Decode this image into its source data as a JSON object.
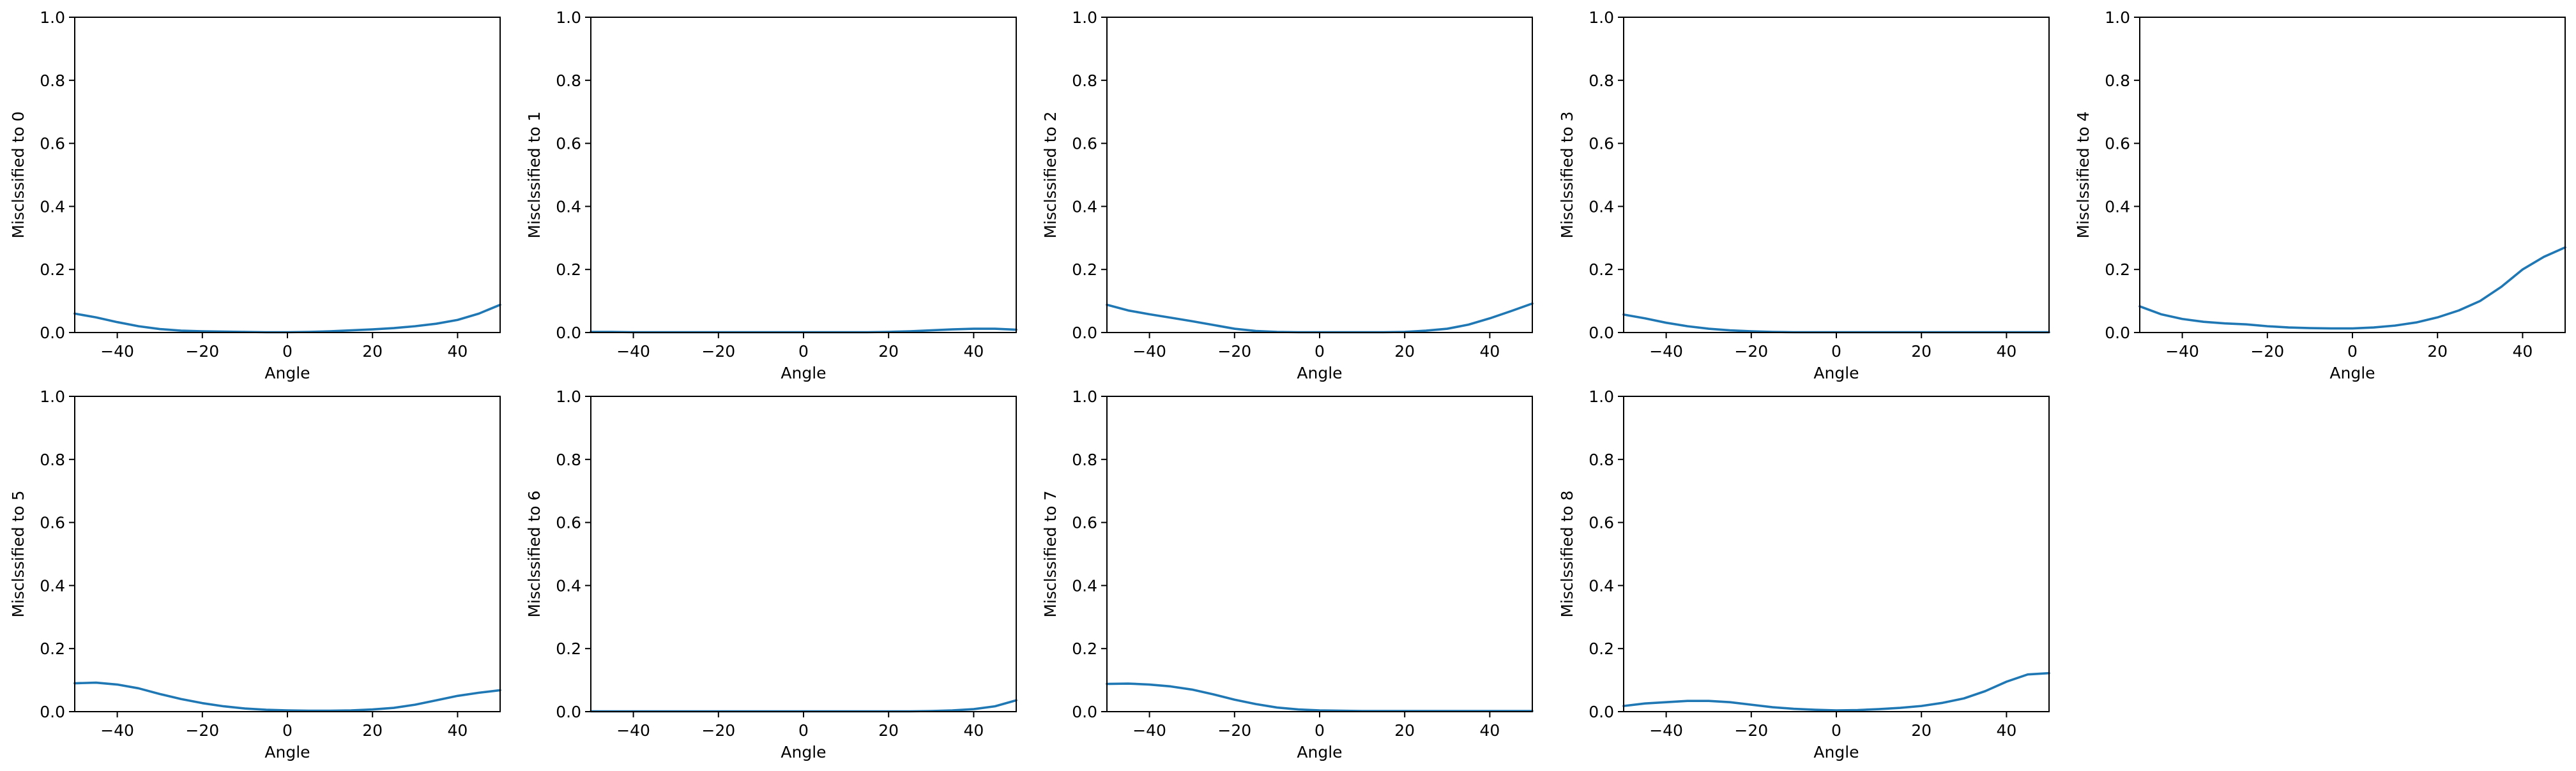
{
  "chart_data": [
    {
      "type": "line",
      "xlabel": "Angle",
      "ylabel": "Misclssified to 0",
      "xlim": [
        -50,
        50
      ],
      "ylim": [
        0,
        1
      ],
      "xticks": [
        -40,
        -20,
        0,
        20,
        40
      ],
      "yticks": [
        0.0,
        0.2,
        0.4,
        0.6,
        0.8,
        1.0
      ],
      "grid": false,
      "series": [
        {
          "color": "#1f77b4",
          "x": [
            -50,
            -45,
            -40,
            -35,
            -30,
            -25,
            -20,
            -15,
            -10,
            -5,
            0,
            5,
            10,
            15,
            20,
            25,
            30,
            35,
            40,
            45,
            50
          ],
          "y": [
            0.06,
            0.048,
            0.033,
            0.02,
            0.011,
            0.006,
            0.004,
            0.003,
            0.002,
            0.001,
            0.001,
            0.002,
            0.004,
            0.007,
            0.01,
            0.014,
            0.02,
            0.028,
            0.04,
            0.06,
            0.088
          ]
        }
      ]
    },
    {
      "type": "line",
      "xlabel": "Angle",
      "ylabel": "Misclssified to 1",
      "xlim": [
        -50,
        50
      ],
      "ylim": [
        0,
        1
      ],
      "xticks": [
        -40,
        -20,
        0,
        20,
        40
      ],
      "yticks": [
        0.0,
        0.2,
        0.4,
        0.6,
        0.8,
        1.0
      ],
      "grid": false,
      "series": [
        {
          "color": "#1f77b4",
          "x": [
            -50,
            -45,
            -40,
            -35,
            -30,
            -25,
            -20,
            -15,
            -10,
            -5,
            0,
            5,
            10,
            15,
            20,
            25,
            30,
            35,
            40,
            45,
            50
          ],
          "y": [
            0.002,
            0.002,
            0.001,
            0.001,
            0.001,
            0.001,
            0.001,
            0.001,
            0.001,
            0.001,
            0.001,
            0.001,
            0.001,
            0.001,
            0.002,
            0.004,
            0.007,
            0.01,
            0.012,
            0.012,
            0.009
          ]
        }
      ]
    },
    {
      "type": "line",
      "xlabel": "Angle",
      "ylabel": "Misclssified to 2",
      "xlim": [
        -50,
        50
      ],
      "ylim": [
        0,
        1
      ],
      "xticks": [
        -40,
        -20,
        0,
        20,
        40
      ],
      "yticks": [
        0.0,
        0.2,
        0.4,
        0.6,
        0.8,
        1.0
      ],
      "grid": false,
      "series": [
        {
          "color": "#1f77b4",
          "x": [
            -50,
            -45,
            -40,
            -35,
            -30,
            -25,
            -20,
            -15,
            -10,
            -5,
            0,
            5,
            10,
            15,
            20,
            25,
            30,
            35,
            40,
            45,
            50
          ],
          "y": [
            0.088,
            0.07,
            0.058,
            0.047,
            0.036,
            0.024,
            0.012,
            0.005,
            0.002,
            0.001,
            0.001,
            0.001,
            0.001,
            0.001,
            0.002,
            0.006,
            0.012,
            0.025,
            0.045,
            0.068,
            0.092
          ]
        }
      ]
    },
    {
      "type": "line",
      "xlabel": "Angle",
      "ylabel": "Misclssified to 3",
      "xlim": [
        -50,
        50
      ],
      "ylim": [
        0,
        1
      ],
      "xticks": [
        -40,
        -20,
        0,
        20,
        40
      ],
      "yticks": [
        0.0,
        0.2,
        0.4,
        0.6,
        0.8,
        1.0
      ],
      "grid": false,
      "series": [
        {
          "color": "#1f77b4",
          "x": [
            -50,
            -45,
            -40,
            -35,
            -30,
            -25,
            -20,
            -15,
            -10,
            -5,
            0,
            5,
            10,
            15,
            20,
            25,
            30,
            35,
            40,
            45,
            50
          ],
          "y": [
            0.057,
            0.045,
            0.031,
            0.02,
            0.012,
            0.007,
            0.004,
            0.002,
            0.001,
            0.001,
            0.001,
            0.001,
            0.001,
            0.001,
            0.001,
            0.001,
            0.001,
            0.001,
            0.001,
            0.001,
            0.001
          ]
        }
      ]
    },
    {
      "type": "line",
      "xlabel": "Angle",
      "ylabel": "Misclssified to 4",
      "xlim": [
        -50,
        50
      ],
      "ylim": [
        0,
        1
      ],
      "xticks": [
        -40,
        -20,
        0,
        20,
        40
      ],
      "yticks": [
        0.0,
        0.2,
        0.4,
        0.6,
        0.8,
        1.0
      ],
      "grid": false,
      "series": [
        {
          "color": "#1f77b4",
          "x": [
            -50,
            -45,
            -40,
            -35,
            -30,
            -25,
            -20,
            -15,
            -10,
            -5,
            0,
            5,
            10,
            15,
            20,
            25,
            30,
            35,
            40,
            45,
            50
          ],
          "y": [
            0.083,
            0.058,
            0.043,
            0.034,
            0.029,
            0.026,
            0.02,
            0.016,
            0.014,
            0.013,
            0.013,
            0.016,
            0.022,
            0.032,
            0.048,
            0.07,
            0.1,
            0.145,
            0.2,
            0.24,
            0.27
          ]
        }
      ]
    },
    {
      "type": "line",
      "xlabel": "Angle",
      "ylabel": "Misclssified to 5",
      "xlim": [
        -50,
        50
      ],
      "ylim": [
        0,
        1
      ],
      "xticks": [
        -40,
        -20,
        0,
        20,
        40
      ],
      "yticks": [
        0.0,
        0.2,
        0.4,
        0.6,
        0.8,
        1.0
      ],
      "grid": false,
      "series": [
        {
          "color": "#1f77b4",
          "x": [
            -50,
            -45,
            -40,
            -35,
            -30,
            -25,
            -20,
            -15,
            -10,
            -5,
            0,
            5,
            10,
            15,
            20,
            25,
            30,
            35,
            40,
            45,
            50
          ],
          "y": [
            0.09,
            0.092,
            0.086,
            0.074,
            0.056,
            0.04,
            0.027,
            0.017,
            0.01,
            0.006,
            0.004,
            0.003,
            0.003,
            0.004,
            0.007,
            0.012,
            0.022,
            0.036,
            0.05,
            0.06,
            0.068
          ]
        }
      ]
    },
    {
      "type": "line",
      "xlabel": "Angle",
      "ylabel": "Misclssified to 6",
      "xlim": [
        -50,
        50
      ],
      "ylim": [
        0,
        1
      ],
      "xticks": [
        -40,
        -20,
        0,
        20,
        40
      ],
      "yticks": [
        0.0,
        0.2,
        0.4,
        0.6,
        0.8,
        1.0
      ],
      "grid": false,
      "series": [
        {
          "color": "#1f77b4",
          "x": [
            -50,
            -45,
            -40,
            -35,
            -30,
            -25,
            -20,
            -15,
            -10,
            -5,
            0,
            5,
            10,
            15,
            20,
            25,
            30,
            35,
            40,
            45,
            50
          ],
          "y": [
            0.001,
            0.001,
            0.001,
            0.001,
            0.001,
            0.001,
            0.001,
            0.001,
            0.001,
            0.001,
            0.001,
            0.001,
            0.001,
            0.001,
            0.001,
            0.001,
            0.002,
            0.004,
            0.008,
            0.017,
            0.036
          ]
        }
      ]
    },
    {
      "type": "line",
      "xlabel": "Angle",
      "ylabel": "Misclssified to 7",
      "xlim": [
        -50,
        50
      ],
      "ylim": [
        0,
        1
      ],
      "xticks": [
        -40,
        -20,
        0,
        20,
        40
      ],
      "yticks": [
        0.0,
        0.2,
        0.4,
        0.6,
        0.8,
        1.0
      ],
      "grid": false,
      "series": [
        {
          "color": "#1f77b4",
          "x": [
            -50,
            -45,
            -40,
            -35,
            -30,
            -25,
            -20,
            -15,
            -10,
            -5,
            0,
            5,
            10,
            15,
            20,
            25,
            30,
            35,
            40,
            45,
            50
          ],
          "y": [
            0.088,
            0.089,
            0.086,
            0.08,
            0.07,
            0.055,
            0.038,
            0.024,
            0.013,
            0.007,
            0.004,
            0.003,
            0.002,
            0.002,
            0.002,
            0.002,
            0.002,
            0.002,
            0.002,
            0.002,
            0.002
          ]
        }
      ]
    },
    {
      "type": "line",
      "xlabel": "Angle",
      "ylabel": "Misclssified to 8",
      "xlim": [
        -50,
        50
      ],
      "ylim": [
        0,
        1
      ],
      "xticks": [
        -40,
        -20,
        0,
        20,
        40
      ],
      "yticks": [
        0.0,
        0.2,
        0.4,
        0.6,
        0.8,
        1.0
      ],
      "grid": false,
      "series": [
        {
          "color": "#1f77b4",
          "x": [
            -50,
            -45,
            -40,
            -35,
            -30,
            -25,
            -20,
            -15,
            -10,
            -5,
            0,
            5,
            10,
            15,
            20,
            25,
            30,
            35,
            40,
            45,
            50
          ],
          "y": [
            0.018,
            0.026,
            0.03,
            0.034,
            0.034,
            0.03,
            0.022,
            0.014,
            0.009,
            0.006,
            0.004,
            0.005,
            0.008,
            0.012,
            0.018,
            0.028,
            0.042,
            0.065,
            0.095,
            0.118,
            0.122
          ]
        }
      ]
    }
  ]
}
